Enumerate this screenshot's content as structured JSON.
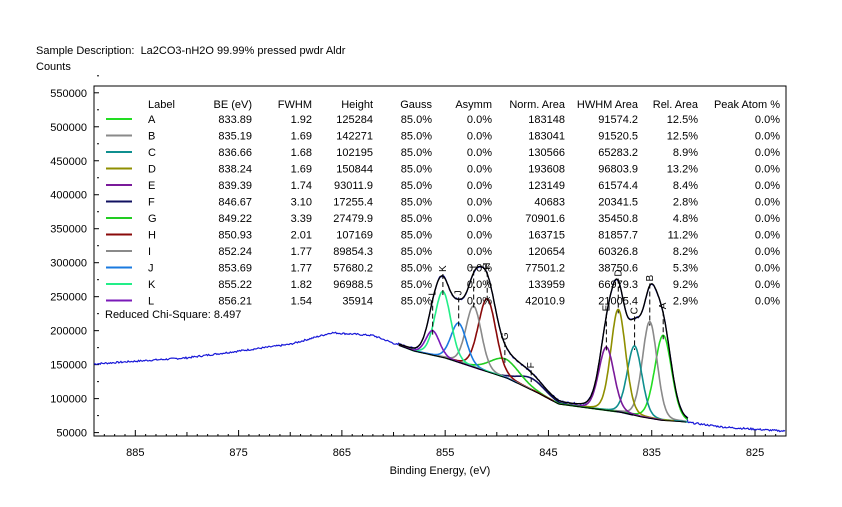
{
  "header": {
    "sample_label": "Sample Description:",
    "sample_value": "La2CO3-nH2O   99.99% pressed pwdr Aldr",
    "y_unit": "Counts"
  },
  "chart_data": {
    "type": "line",
    "title": "",
    "xlabel": "Binding Energy, (eV)",
    "ylabel": "Counts",
    "xlim": [
      889,
      822
    ],
    "ylim": [
      45000,
      560000
    ],
    "x_ticks": [
      885,
      875,
      865,
      855,
      845,
      835,
      825
    ],
    "y_ticks": [
      50000,
      100000,
      150000,
      200000,
      250000,
      300000,
      350000,
      400000,
      450000,
      500000,
      550000
    ],
    "y_tick_labels": [
      "50000",
      "100000",
      "150000",
      "200000",
      "250000",
      "300000",
      "350000",
      "400000",
      "450000",
      "500000",
      "550000"
    ],
    "table_headers": [
      "Label",
      "BE (eV)",
      "FWHM",
      "Height",
      "Gauss",
      "Asymm",
      "Norm. Area",
      "HWHM Area",
      "Rel. Area",
      "Peak Atom %"
    ],
    "peaks": [
      {
        "label": "A",
        "be": "833.89",
        "fwhm": "1.92",
        "height": "125284",
        "gauss": "85.0%",
        "asymm": "0.0%",
        "norm_area": "183148",
        "hwhm_area": "91574.2",
        "rel_area": "12.5%",
        "atom": "0.0%",
        "color": "#22dd22"
      },
      {
        "label": "B",
        "be": "835.19",
        "fwhm": "1.69",
        "height": "142271",
        "gauss": "85.0%",
        "asymm": "0.0%",
        "norm_area": "183041",
        "hwhm_area": "91520.5",
        "rel_area": "12.5%",
        "atom": "0.0%",
        "color": "#8a8a8a"
      },
      {
        "label": "C",
        "be": "836.66",
        "fwhm": "1.68",
        "height": "102195",
        "gauss": "85.0%",
        "asymm": "0.0%",
        "norm_area": "130566",
        "hwhm_area": "65283.2",
        "rel_area": "8.9%",
        "atom": "0.0%",
        "color": "#0f8f8f"
      },
      {
        "label": "D",
        "be": "838.24",
        "fwhm": "1.69",
        "height": "150844",
        "gauss": "85.0%",
        "asymm": "0.0%",
        "norm_area": "193608",
        "hwhm_area": "96803.9",
        "rel_area": "13.2%",
        "atom": "0.0%",
        "color": "#8f8f00"
      },
      {
        "label": "E",
        "be": "839.39",
        "fwhm": "1.74",
        "height": "93011.9",
        "gauss": "85.0%",
        "asymm": "0.0%",
        "norm_area": "123149",
        "hwhm_area": "61574.4",
        "rel_area": "8.4%",
        "atom": "0.0%",
        "color": "#7a1a9a"
      },
      {
        "label": "F",
        "be": "846.67",
        "fwhm": "3.10",
        "height": "17255.4",
        "gauss": "85.0%",
        "asymm": "0.0%",
        "norm_area": "40683",
        "hwhm_area": "20341.5",
        "rel_area": "2.8%",
        "atom": "0.0%",
        "color": "#101060"
      },
      {
        "label": "G",
        "be": "849.22",
        "fwhm": "3.39",
        "height": "27479.9",
        "gauss": "85.0%",
        "asymm": "0.0%",
        "norm_area": "70901.6",
        "hwhm_area": "35450.8",
        "rel_area": "4.8%",
        "atom": "0.0%",
        "color": "#22cc22"
      },
      {
        "label": "H",
        "be": "850.93",
        "fwhm": "2.01",
        "height": "107169",
        "gauss": "85.0%",
        "asymm": "0.0%",
        "norm_area": "163715",
        "hwhm_area": "81857.7",
        "rel_area": "11.2%",
        "atom": "0.0%",
        "color": "#8a0a0a"
      },
      {
        "label": "I",
        "be": "852.24",
        "fwhm": "1.77",
        "height": "89854.3",
        "gauss": "85.0%",
        "asymm": "0.0%",
        "norm_area": "120654",
        "hwhm_area": "60326.8",
        "rel_area": "8.2%",
        "atom": "0.0%",
        "color": "#8a8a8a"
      },
      {
        "label": "J",
        "be": "853.69",
        "fwhm": "1.77",
        "height": "57680.2",
        "gauss": "85.0%",
        "asymm": "0.0%",
        "norm_area": "77501.2",
        "hwhm_area": "38750.6",
        "rel_area": "5.3%",
        "atom": "0.0%",
        "color": "#1a7adf"
      },
      {
        "label": "K",
        "be": "855.22",
        "fwhm": "1.82",
        "height": "96988.5",
        "gauss": "85.0%",
        "asymm": "0.0%",
        "norm_area": "133959",
        "hwhm_area": "66979.3",
        "rel_area": "9.2%",
        "atom": "0.0%",
        "color": "#22ee88"
      },
      {
        "label": "L",
        "be": "856.21",
        "fwhm": "1.54",
        "height": "35914",
        "gauss": "85.0%",
        "asymm": "0.0%",
        "norm_area": "42010.9",
        "hwhm_area": "21005.4",
        "rel_area": "2.9%",
        "atom": "0.0%",
        "color": "#7a1ab8"
      }
    ],
    "reduced_chi_square_label": "Reduced Chi-Square: 8.497",
    "background": [
      [
        889,
        151000
      ],
      [
        880,
        160000
      ],
      [
        870,
        180000
      ],
      [
        866,
        197000
      ],
      [
        862,
        193000
      ],
      [
        858,
        170000
      ],
      [
        855,
        160000
      ],
      [
        852,
        145000
      ],
      [
        849,
        130000
      ],
      [
        846,
        108000
      ],
      [
        844,
        92000
      ],
      [
        842,
        88000
      ],
      [
        840,
        84000
      ],
      [
        838,
        80000
      ],
      [
        836,
        73000
      ],
      [
        834,
        68000
      ],
      [
        832,
        66000
      ],
      [
        830,
        62000
      ],
      [
        828,
        58000
      ],
      [
        825,
        55000
      ],
      [
        822,
        52000
      ]
    ],
    "fit_range": [
      859.5,
      831.5
    ],
    "series_colors": {
      "raw": "#1818d8",
      "envelope": "#000000"
    }
  }
}
